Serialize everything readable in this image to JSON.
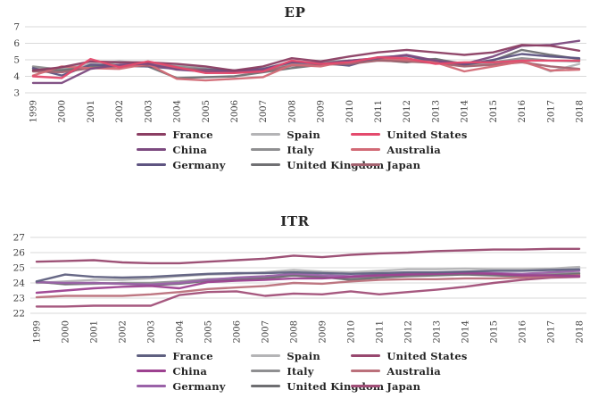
{
  "colors": {
    "background": "#ffffff",
    "grid": "#d9d9d9",
    "axis_text": "#404040",
    "title_text": "#262626"
  },
  "chart_data": [
    {
      "type": "line",
      "title": "EP",
      "xlabel": "",
      "ylabel": "",
      "x": [
        1999,
        2000,
        2001,
        2002,
        2003,
        2004,
        2005,
        2006,
        2007,
        2008,
        2009,
        2010,
        2011,
        2012,
        2013,
        2014,
        2015,
        2016,
        2017,
        2018
      ],
      "ylim": [
        3,
        7
      ],
      "y_ticks": [
        7,
        6,
        5,
        4,
        3
      ],
      "grid": true,
      "legend_position": "bottom",
      "series": [
        {
          "name": "France",
          "color": "#8b3e63",
          "values": [
            4.35,
            4.55,
            4.9,
            4.85,
            4.85,
            4.75,
            4.6,
            4.35,
            4.6,
            5.1,
            4.9,
            5.2,
            5.45,
            5.6,
            5.45,
            5.3,
            5.45,
            5.9,
            5.85,
            5.55
          ]
        },
        {
          "name": "Spain",
          "color": "#b4b4b6",
          "values": [
            4.5,
            4.45,
            4.75,
            4.9,
            4.8,
            4.65,
            4.5,
            4.35,
            4.5,
            4.85,
            4.9,
            4.9,
            5.0,
            4.9,
            4.85,
            4.65,
            4.75,
            5.0,
            4.3,
            4.75
          ]
        },
        {
          "name": "United States",
          "color": "#e44a6d",
          "values": [
            4.0,
            3.9,
            5.05,
            4.55,
            4.9,
            4.55,
            4.2,
            4.2,
            4.3,
            4.95,
            4.75,
            4.85,
            5.15,
            5.1,
            4.75,
            4.85,
            4.85,
            4.95,
            4.95,
            4.95
          ]
        },
        {
          "name": "China",
          "color": "#7c4a80",
          "values": [
            3.6,
            3.6,
            4.45,
            4.7,
            4.75,
            4.4,
            4.3,
            4.3,
            4.4,
            4.9,
            4.75,
            4.95,
            5.1,
            5.3,
            4.95,
            4.75,
            5.2,
            5.85,
            5.9,
            6.15
          ]
        },
        {
          "name": "Italy",
          "color": "#8f8f91",
          "values": [
            4.6,
            4.4,
            4.6,
            4.85,
            4.75,
            4.6,
            4.45,
            4.3,
            4.4,
            4.75,
            4.85,
            4.95,
            5.05,
            5.0,
            5.05,
            4.75,
            4.85,
            5.1,
            4.95,
            4.9
          ]
        },
        {
          "name": "Australia",
          "color": "#d26a76",
          "values": [
            4.05,
            4.6,
            4.5,
            4.45,
            4.75,
            3.85,
            3.75,
            3.85,
            3.95,
            4.7,
            4.6,
            4.95,
            5.1,
            5.0,
            4.85,
            4.3,
            4.6,
            4.9,
            4.35,
            4.4
          ]
        },
        {
          "name": "Germany",
          "color": "#5e5481",
          "values": [
            4.5,
            4.05,
            4.7,
            4.65,
            4.6,
            4.45,
            4.4,
            4.35,
            4.45,
            4.85,
            4.8,
            4.65,
            5.15,
            5.25,
            4.9,
            4.7,
            5.0,
            5.35,
            5.2,
            5.1
          ]
        },
        {
          "name": "United Kingdom",
          "color": "#707073",
          "values": [
            4.4,
            4.35,
            4.55,
            4.65,
            4.6,
            3.9,
            3.95,
            4.0,
            4.25,
            4.5,
            4.7,
            4.95,
            5.0,
            4.85,
            5.05,
            4.7,
            4.95,
            5.6,
            5.3,
            5.05
          ]
        },
        {
          "name": "Japan",
          "color": "#a3626f",
          "values": [
            4.3,
            4.25,
            4.5,
            4.6,
            4.65,
            4.5,
            4.35,
            4.25,
            4.3,
            4.65,
            4.7,
            4.75,
            4.95,
            4.9,
            4.8,
            4.6,
            4.7,
            4.85,
            4.6,
            4.45
          ]
        }
      ]
    },
    {
      "type": "line",
      "title": "ITR",
      "xlabel": "",
      "ylabel": "",
      "x": [
        1999,
        2000,
        2001,
        2002,
        2003,
        2004,
        2005,
        2006,
        2007,
        2008,
        2009,
        2010,
        2011,
        2012,
        2013,
        2014,
        2015,
        2016,
        2017,
        2018
      ],
      "ylim": [
        22,
        27
      ],
      "y_ticks": [
        27,
        26,
        25,
        24,
        23,
        22
      ],
      "grid": true,
      "legend_position": "bottom",
      "series": [
        {
          "name": "France",
          "color": "#5f6080",
          "values": [
            24.1,
            24.55,
            24.4,
            24.35,
            24.4,
            24.5,
            24.6,
            24.65,
            24.65,
            24.7,
            24.65,
            24.6,
            24.65,
            24.7,
            24.7,
            24.75,
            24.8,
            24.8,
            24.85,
            24.9
          ]
        },
        {
          "name": "Spain",
          "color": "#b4b4b6",
          "values": [
            24.0,
            24.1,
            24.2,
            24.2,
            24.3,
            24.45,
            24.55,
            24.6,
            24.7,
            24.85,
            24.75,
            24.7,
            24.8,
            24.9,
            24.9,
            24.95,
            24.9,
            24.9,
            24.95,
            25.05
          ]
        },
        {
          "name": "United States",
          "color": "#98486f",
          "values": [
            25.4,
            25.45,
            25.5,
            25.35,
            25.3,
            25.3,
            25.4,
            25.5,
            25.6,
            25.8,
            25.7,
            25.85,
            25.95,
            26.0,
            26.1,
            26.15,
            26.2,
            26.2,
            26.25,
            26.25
          ]
        },
        {
          "name": "China",
          "color": "#9d4190",
          "values": [
            23.35,
            23.5,
            23.65,
            23.75,
            23.8,
            23.65,
            24.05,
            24.15,
            24.2,
            24.3,
            24.3,
            24.4,
            24.5,
            24.55,
            24.6,
            24.65,
            24.6,
            24.5,
            24.5,
            24.45
          ]
        },
        {
          "name": "Italy",
          "color": "#8f8f91",
          "values": [
            24.1,
            23.9,
            23.95,
            24.0,
            24.0,
            24.1,
            24.25,
            24.3,
            24.4,
            24.5,
            24.35,
            24.3,
            24.4,
            24.55,
            24.6,
            24.65,
            24.6,
            24.55,
            24.6,
            24.65
          ]
        },
        {
          "name": "Australia",
          "color": "#bb707b",
          "values": [
            23.05,
            23.15,
            23.15,
            23.15,
            23.25,
            23.4,
            23.6,
            23.7,
            23.8,
            24.0,
            23.95,
            24.1,
            24.2,
            24.25,
            24.25,
            24.3,
            24.3,
            24.35,
            24.45,
            24.5
          ]
        },
        {
          "name": "Germany",
          "color": "#9a62a8",
          "values": [
            24.05,
            24.0,
            24.0,
            23.95,
            23.9,
            24.0,
            24.2,
            24.35,
            24.45,
            24.6,
            24.5,
            24.45,
            24.55,
            24.6,
            24.65,
            24.7,
            24.65,
            24.6,
            24.7,
            24.8
          ]
        },
        {
          "name": "United Kingdom",
          "color": "#6e6e71",
          "values": [
            24.05,
            23.95,
            24.0,
            23.95,
            23.85,
            23.95,
            24.15,
            24.2,
            24.3,
            24.5,
            24.4,
            24.2,
            24.35,
            24.45,
            24.5,
            24.55,
            24.5,
            24.45,
            24.5,
            24.6
          ]
        },
        {
          "name": "Japan",
          "color": "#a14f78",
          "values": [
            22.45,
            22.45,
            22.5,
            22.5,
            22.5,
            23.2,
            23.4,
            23.45,
            23.15,
            23.3,
            23.25,
            23.45,
            23.25,
            23.4,
            23.55,
            23.75,
            24.0,
            24.2,
            24.35,
            24.4
          ]
        }
      ]
    }
  ],
  "legend_order_note": "row-major, 3 columns: France, Spain, United States / China, Italy, Australia / Germany, United Kingdom, Japan"
}
